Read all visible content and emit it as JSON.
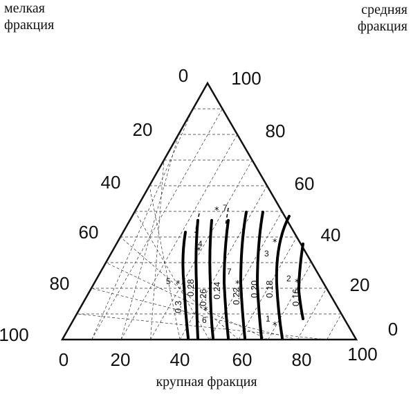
{
  "corner_labels": {
    "fine": [
      "мелкая",
      "фракция"
    ],
    "medium": [
      "средняя",
      "фракция"
    ],
    "coarse": "крупная фракция"
  },
  "left_axis_ticks": [
    "0",
    "20",
    "40",
    "60",
    "80",
    "100"
  ],
  "right_axis_ticks": [
    "100",
    "80",
    "60",
    "40",
    "20",
    "0"
  ],
  "bottom_axis_ticks": [
    "0",
    "20",
    "40",
    "60",
    "80",
    "100"
  ],
  "isoline_labels": [
    "0.3",
    "0.28",
    "0.26",
    "0.24",
    "0.22",
    "0.20",
    "0.18",
    "0.16"
  ],
  "point_labels": [
    "1",
    "2",
    "3",
    "4",
    "5",
    "6",
    "7",
    "7"
  ]
}
